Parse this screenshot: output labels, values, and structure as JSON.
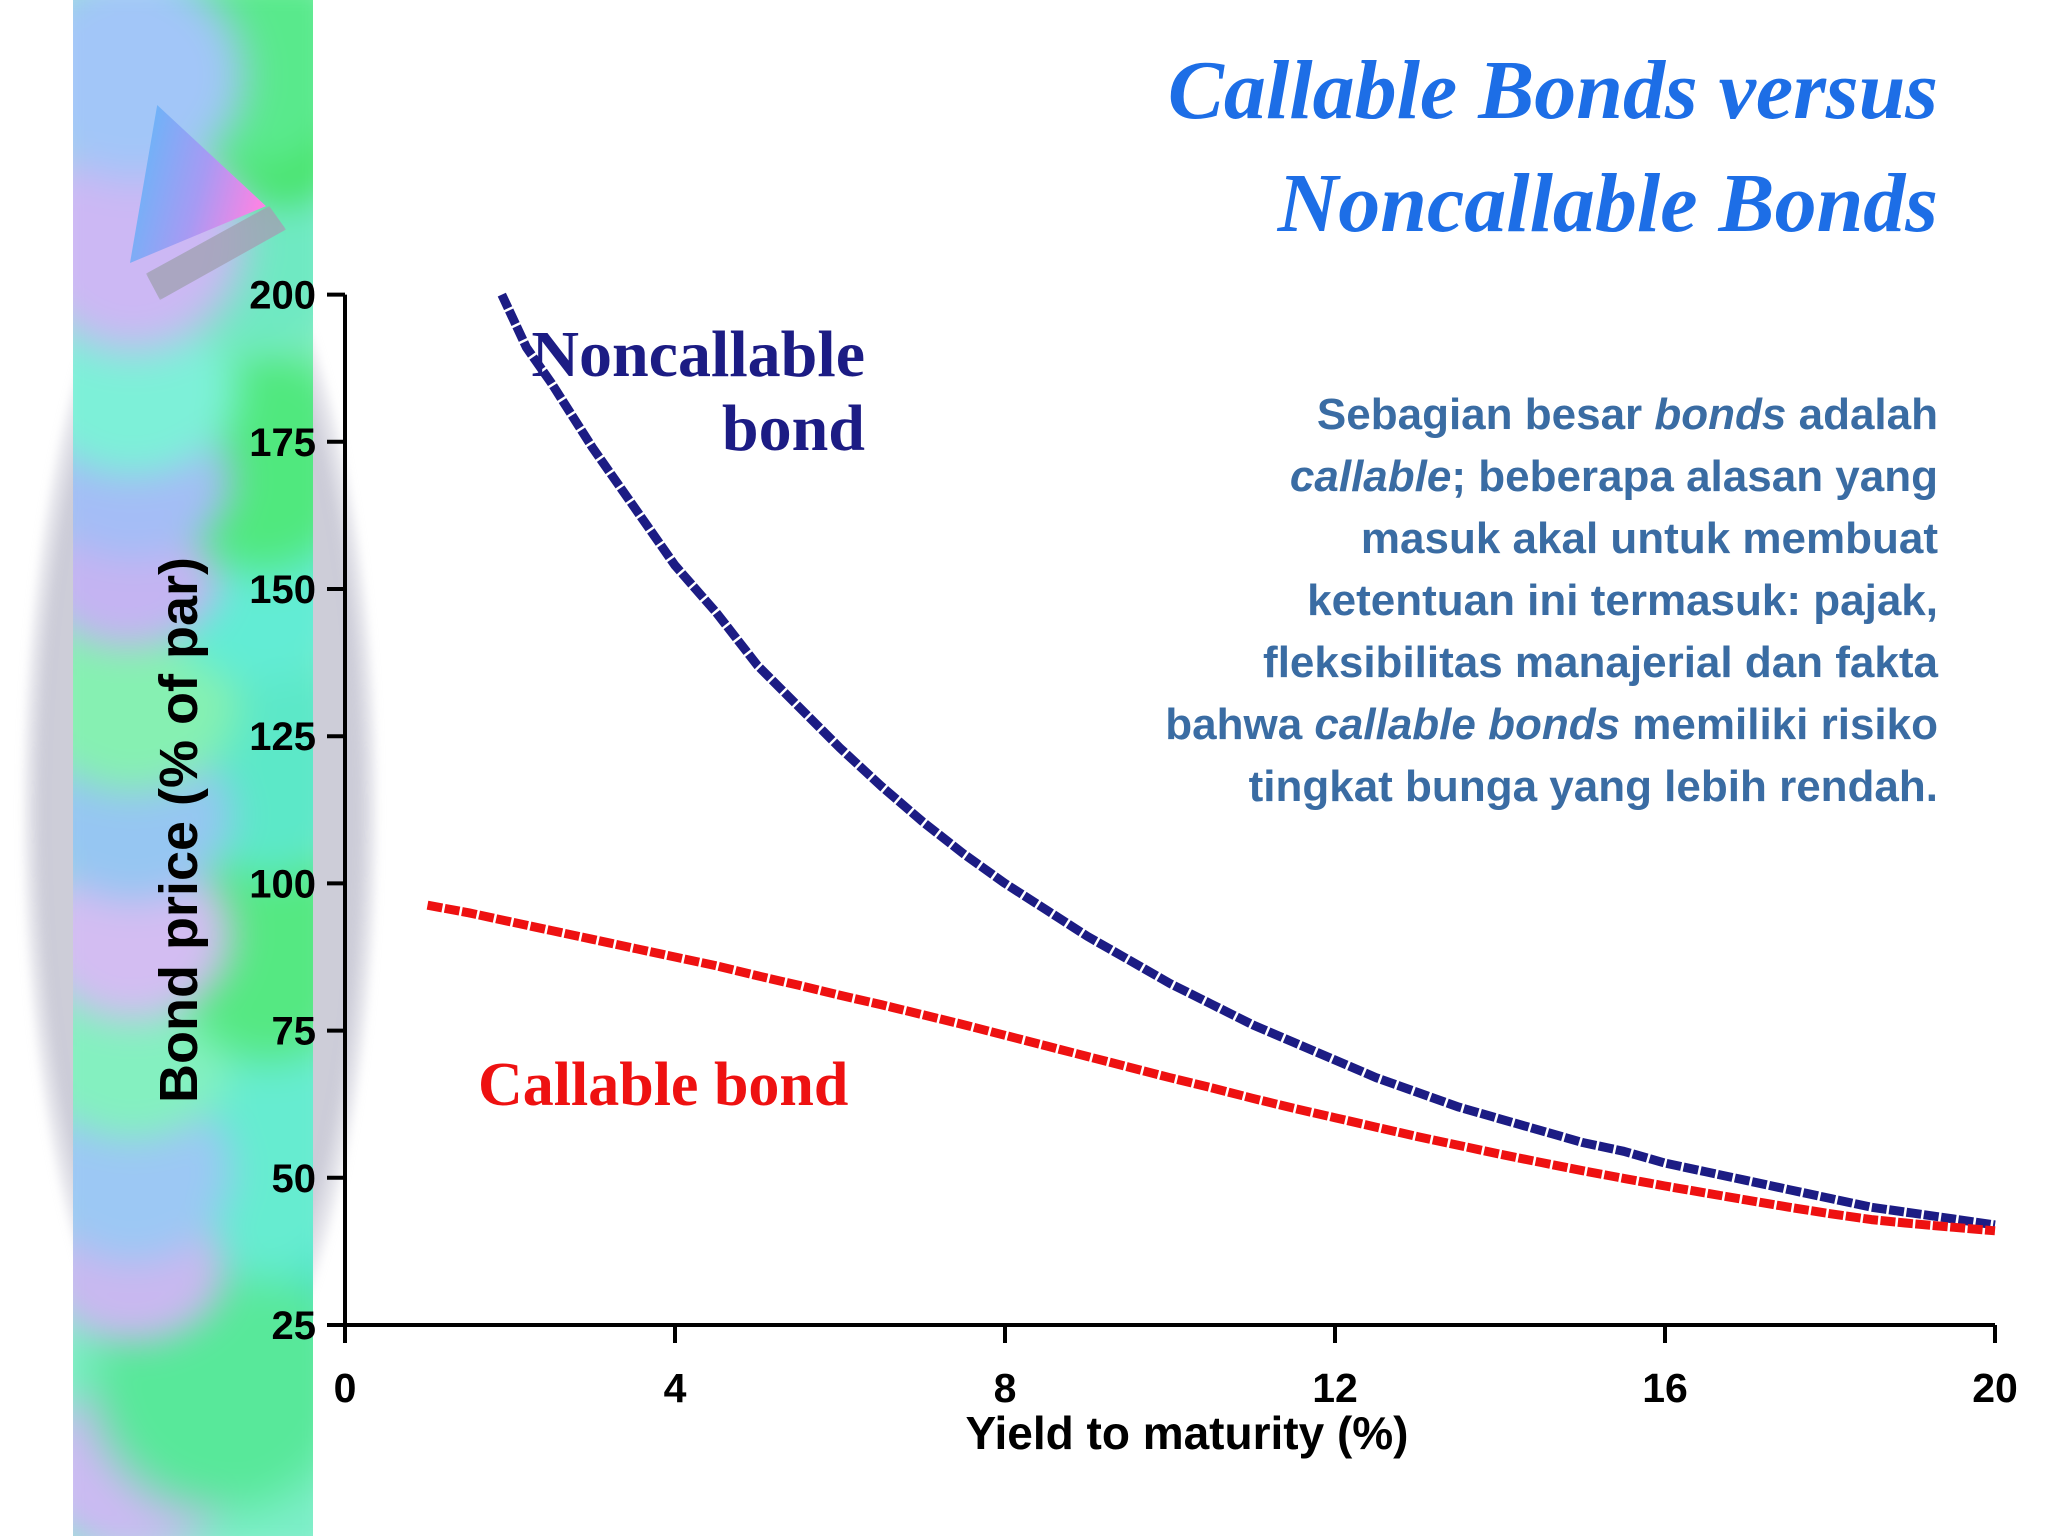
{
  "slide": {
    "title": {
      "lines": [
        "Callable Bonds versus",
        "Noncallable Bonds"
      ],
      "color": "#1d6ee6"
    },
    "paragraph": {
      "color": "#3a6ca3",
      "lines": [
        [
          {
            "t": "Sebagian besar "
          },
          {
            "t": "bonds",
            "i": true
          },
          {
            "t": " adalah"
          }
        ],
        [
          {
            "t": "callable",
            "i": true
          },
          {
            "t": "; beberapa alasan yang"
          }
        ],
        [
          {
            "t": "masuk akal untuk membuat"
          }
        ],
        [
          {
            "t": "ketentuan ini termasuk: pajak,"
          }
        ],
        [
          {
            "t": "fleksibilitas manajerial dan fakta"
          }
        ],
        [
          {
            "t": "bahwa "
          },
          {
            "t": "callable bonds",
            "i": true
          },
          {
            "t": " memiliki risiko"
          }
        ],
        [
          {
            "t": "tingkat bunga yang lebih rendah."
          }
        ]
      ]
    }
  },
  "chart_data": {
    "type": "line",
    "title": "",
    "xlabel": "Yield to maturity (%)",
    "ylabel": "Bond price (% of par)",
    "xlim": [
      0,
      20
    ],
    "ylim": [
      25,
      200
    ],
    "x_ticks": [
      0,
      4,
      8,
      12,
      16,
      20
    ],
    "y_ticks": [
      25,
      50,
      75,
      100,
      125,
      150,
      175,
      200
    ],
    "grid": false,
    "legend_position": "inline-annotations",
    "axis_color": "#000000",
    "series": [
      {
        "name": "Noncallable bond",
        "label_lines": [
          "Noncallable",
          "bond"
        ],
        "color": "#1c1c84",
        "points": [
          [
            1.9,
            200
          ],
          [
            2.2,
            191
          ],
          [
            2.5,
            185
          ],
          [
            3,
            174
          ],
          [
            3.5,
            164
          ],
          [
            4,
            154
          ],
          [
            4.5,
            146
          ],
          [
            5,
            137
          ],
          [
            5.5,
            130
          ],
          [
            6,
            123
          ],
          [
            6.5,
            116.5
          ],
          [
            7,
            110.5
          ],
          [
            7.5,
            105
          ],
          [
            8,
            100
          ],
          [
            8.5,
            95.5
          ],
          [
            9,
            91
          ],
          [
            9.5,
            87
          ],
          [
            10,
            83
          ],
          [
            10.5,
            79.5
          ],
          [
            11,
            76
          ],
          [
            11.5,
            73
          ],
          [
            12,
            70
          ],
          [
            12.5,
            67
          ],
          [
            13,
            64.5
          ],
          [
            13.5,
            62
          ],
          [
            14,
            60
          ],
          [
            14.5,
            58
          ],
          [
            15,
            56
          ],
          [
            15.5,
            54.5
          ],
          [
            16,
            52.5
          ],
          [
            16.5,
            51
          ],
          [
            17,
            49.5
          ],
          [
            17.5,
            48
          ],
          [
            18,
            46.5
          ],
          [
            18.5,
            45
          ],
          [
            19,
            44
          ],
          [
            19.5,
            43
          ],
          [
            20,
            42
          ]
        ]
      },
      {
        "name": "Callable bond",
        "label_lines": [
          "Callable bond"
        ],
        "color": "#ee1111",
        "points": [
          [
            1,
            96.3
          ],
          [
            1.5,
            95
          ],
          [
            2,
            93.5
          ],
          [
            2.5,
            92
          ],
          [
            3,
            90.5
          ],
          [
            3.5,
            89
          ],
          [
            4,
            87.5
          ],
          [
            4.5,
            86
          ],
          [
            5,
            84.3
          ],
          [
            5.5,
            82.7
          ],
          [
            6,
            81
          ],
          [
            6.5,
            79.4
          ],
          [
            7,
            77.7
          ],
          [
            7.5,
            76
          ],
          [
            8,
            74.2
          ],
          [
            8.5,
            72.4
          ],
          [
            9,
            70.6
          ],
          [
            9.5,
            68.8
          ],
          [
            10,
            67
          ],
          [
            10.5,
            65.3
          ],
          [
            11,
            63.5
          ],
          [
            11.5,
            61.8
          ],
          [
            12,
            60.2
          ],
          [
            12.5,
            58.6
          ],
          [
            13,
            57
          ],
          [
            13.5,
            55.5
          ],
          [
            14,
            54
          ],
          [
            14.5,
            52.6
          ],
          [
            15,
            51.2
          ],
          [
            15.5,
            49.9
          ],
          [
            16,
            48.6
          ],
          [
            16.5,
            47.4
          ],
          [
            17,
            46.2
          ],
          [
            17.5,
            45
          ],
          [
            18,
            43.9
          ],
          [
            18.5,
            42.9
          ],
          [
            19,
            42.2
          ],
          [
            19.5,
            41.6
          ],
          [
            20,
            41
          ]
        ]
      }
    ]
  }
}
